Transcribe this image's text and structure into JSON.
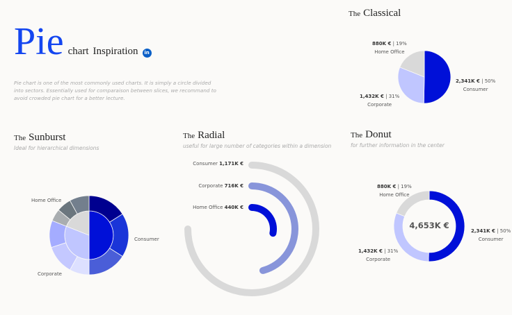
{
  "header": {
    "title_big": "Pie",
    "title_rest1": "chart",
    "title_rest2": "Inspiration",
    "linkedin_icon": "linkedin-icon",
    "linkedin_label": "in",
    "description": "Pie chart is one of the most commonly used charts. It is simply a circle divided into sectors. Essentially used for comparaison between slices, we recommand to avoid crowded pie chart for a better lecture."
  },
  "colors": {
    "accent": "#0a0fdc",
    "title_blue": "#1446f0",
    "consumer": "#0010d8",
    "corporate": "#c0c6ff",
    "home_office": "#d9d9d9",
    "radial_mid": "#8895da"
  },
  "chart_data": [
    {
      "type": "pie",
      "title_prefix": "The",
      "title": "Classical",
      "categories": [
        "Consumer",
        "Corporate",
        "Home Office"
      ],
      "values": [
        2341,
        1432,
        880
      ],
      "value_labels": [
        "2,341K €",
        "1,432K €",
        "880K €"
      ],
      "percent_labels": [
        "50%",
        "31%",
        "19%"
      ]
    },
    {
      "type": "pie",
      "subtype": "sunburst",
      "title_prefix": "The",
      "title": "Sunburst",
      "subtitle": "Ideal for hierarchical dimensions",
      "categories": [
        "Consumer",
        "Corporate",
        "Home Office"
      ],
      "values": [
        50,
        31,
        19
      ],
      "outer_values": [
        [
          16,
          18,
          16
        ],
        [
          8,
          12,
          11
        ],
        [
          5,
          6,
          8
        ]
      ]
    },
    {
      "type": "bar",
      "subtype": "radial",
      "title_prefix": "The",
      "title": "Radial",
      "subtitle": "useful for large number of categories within a dimension",
      "categories": [
        "Consumer",
        "Corporate",
        "Home Office"
      ],
      "values": [
        1171,
        716,
        440
      ],
      "value_labels": [
        "1,171K €",
        "716K €",
        "440K €"
      ]
    },
    {
      "type": "pie",
      "subtype": "donut",
      "title_prefix": "The",
      "title": "Donut",
      "subtitle": "for further information in the center",
      "center_label": "4,653K €",
      "categories": [
        "Consumer",
        "Corporate",
        "Home Office"
      ],
      "values": [
        2341,
        1432,
        880
      ],
      "value_labels": [
        "2,341K €",
        "1,432K €",
        "880K €"
      ],
      "percent_labels": [
        "50%",
        "31%",
        "19%"
      ]
    }
  ]
}
